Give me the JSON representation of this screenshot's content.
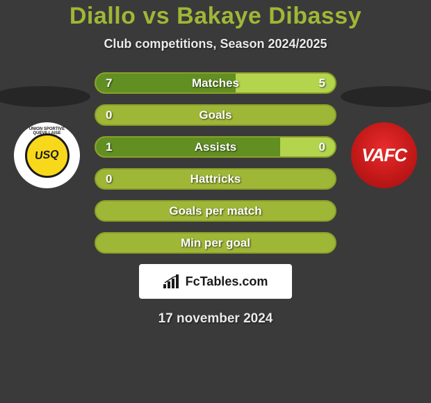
{
  "colors": {
    "page_bg": "#3a3a3a",
    "title_color": "#9fb736",
    "subtitle_color": "#eaeaea",
    "ellipse_color": "#262626",
    "bar_bg": "#9fb736",
    "bar_border": "#8aa028",
    "bar_fill_left": "#628f22",
    "bar_fill_right": "#b3d54d",
    "bar_text": "#ffffff",
    "brand_bg": "#ffffff",
    "brand_text": "#1a1a1a",
    "brand_icon": "#1a1a1a",
    "date_color": "#eaeaea",
    "logo_left_bg": "#ffffff",
    "logo_left_inner": "#f8d81a",
    "logo_left_inner_border": "#1a1a1a",
    "logo_left_text": "#1a1a1a",
    "logo_right_text": "#ffffff"
  },
  "title": "Diallo vs Bakaye Dibassy",
  "subtitle": "Club competitions, Season 2024/2025",
  "team_left_abbr": "USQ",
  "team_left_arc": "UNION SPORTIVE QUEVILLAISE",
  "team_right_abbr": "VAFC",
  "brand_label": "FcTables.com",
  "date": "17 november 2024",
  "bars": [
    {
      "label": "Matches",
      "left_val": "7",
      "right_val": "5",
      "left_pct": 58.3,
      "right_pct": 41.7,
      "show_left": true,
      "show_right": true
    },
    {
      "label": "Goals",
      "left_val": "0",
      "right_val": "0",
      "left_pct": 0,
      "right_pct": 0,
      "show_left": true,
      "show_right": false
    },
    {
      "label": "Assists",
      "left_val": "1",
      "right_val": "0",
      "left_pct": 77,
      "right_pct": 23,
      "show_left": true,
      "show_right": true
    },
    {
      "label": "Hattricks",
      "left_val": "0",
      "right_val": "0",
      "left_pct": 0,
      "right_pct": 0,
      "show_left": true,
      "show_right": false
    },
    {
      "label": "Goals per match",
      "left_val": "",
      "right_val": "",
      "left_pct": 0,
      "right_pct": 0,
      "show_left": false,
      "show_right": false
    },
    {
      "label": "Min per goal",
      "left_val": "",
      "right_val": "",
      "left_pct": 0,
      "right_pct": 0,
      "show_left": false,
      "show_right": false
    }
  ]
}
